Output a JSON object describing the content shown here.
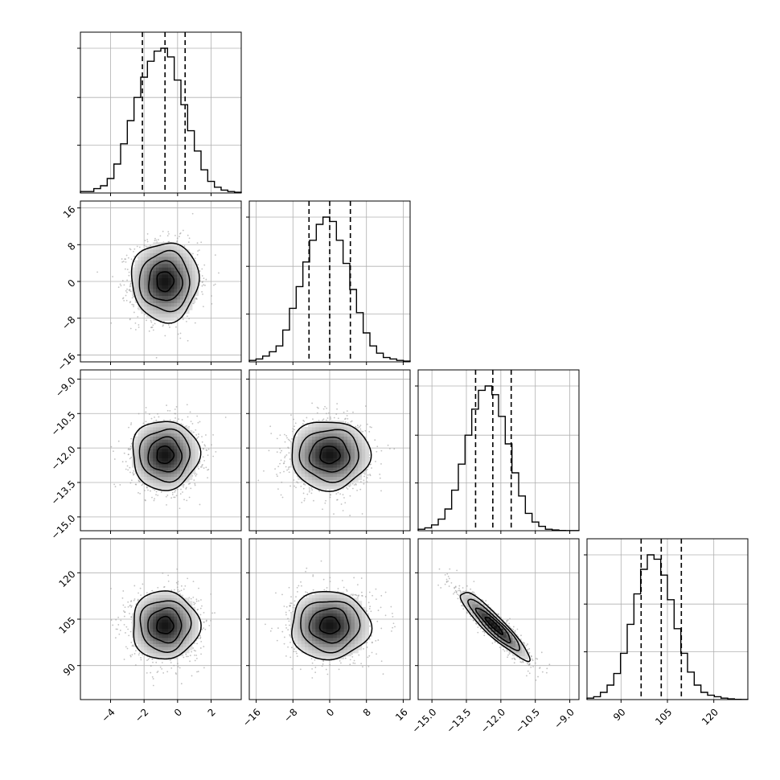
{
  "colors": {
    "line": "#000000",
    "grid": "#b0b0b0",
    "scatter": "#9a9a9a",
    "background": "#ffffff"
  },
  "chart_data": {
    "type": "corner",
    "parameters": [
      {
        "range": [
          -5.8,
          3.8
        ],
        "ticks": [
          -4,
          -2,
          0,
          2
        ],
        "tick_labels": [
          "−4",
          "−2",
          "0",
          "2"
        ],
        "quantiles": [
          -2.1,
          -0.75,
          0.45
        ],
        "hist_bins": [
          0.01,
          0.01,
          0.03,
          0.05,
          0.1,
          0.2,
          0.34,
          0.5,
          0.66,
          0.8,
          0.91,
          0.98,
          1.0,
          0.94,
          0.78,
          0.61,
          0.43,
          0.29,
          0.16,
          0.08,
          0.04,
          0.02,
          0.01,
          0.005
        ],
        "center": -0.75,
        "sigma": 1.0
      },
      {
        "range": [
          -17.5,
          17.5
        ],
        "ticks": [
          -16,
          -8,
          0,
          8,
          16
        ],
        "tick_labels": [
          "−16",
          "−8",
          "0",
          "8",
          "16"
        ],
        "quantiles": [
          -4.5,
          0.0,
          4.5
        ],
        "hist_bins": [
          0.01,
          0.02,
          0.04,
          0.07,
          0.11,
          0.22,
          0.37,
          0.52,
          0.69,
          0.84,
          0.95,
          1.0,
          0.97,
          0.84,
          0.68,
          0.5,
          0.34,
          0.2,
          0.11,
          0.06,
          0.03,
          0.02,
          0.01,
          0.005
        ],
        "center": 0.0,
        "sigma": 4.3
      },
      {
        "range": [
          -15.6,
          -8.6
        ],
        "ticks": [
          -15.0,
          -13.5,
          -12.0,
          -10.5,
          -9.0
        ],
        "tick_labels": [
          "−15.0",
          "−13.5",
          "−12.0",
          "−10.5",
          "−9.0"
        ],
        "quantiles": [
          -13.1,
          -12.35,
          -11.55
        ],
        "hist_bins": [
          0.01,
          0.02,
          0.04,
          0.08,
          0.15,
          0.28,
          0.46,
          0.66,
          0.84,
          0.97,
          1.0,
          0.94,
          0.79,
          0.6,
          0.4,
          0.24,
          0.12,
          0.06,
          0.03,
          0.01,
          0.005,
          0.002,
          0.001,
          0.001
        ],
        "center": -12.3,
        "sigma": 0.75
      },
      {
        "range": [
          79,
          131
        ],
        "ticks": [
          90,
          105,
          120
        ],
        "tick_labels": [
          "90",
          "105",
          "120"
        ],
        "quantiles": [
          96.5,
          103.0,
          109.5
        ],
        "hist_bins": [
          0.01,
          0.02,
          0.05,
          0.1,
          0.18,
          0.32,
          0.52,
          0.73,
          0.9,
          1.0,
          0.97,
          0.86,
          0.69,
          0.49,
          0.32,
          0.19,
          0.1,
          0.05,
          0.03,
          0.02,
          0.01,
          0.005,
          0.002,
          0.001
        ],
        "center": 103.0,
        "sigma": 5.5
      }
    ],
    "correlations": [
      [
        1,
        0,
        0,
        0
      ],
      [
        0,
        1,
        0,
        0
      ],
      [
        0,
        0,
        1,
        -0.92
      ],
      [
        0,
        0,
        -0.92,
        1
      ]
    ],
    "contour_levels_sigma": [
      0.5,
      1.0,
      1.5,
      2.0
    ],
    "grid": true,
    "quantile_linestyle": "dashed"
  }
}
